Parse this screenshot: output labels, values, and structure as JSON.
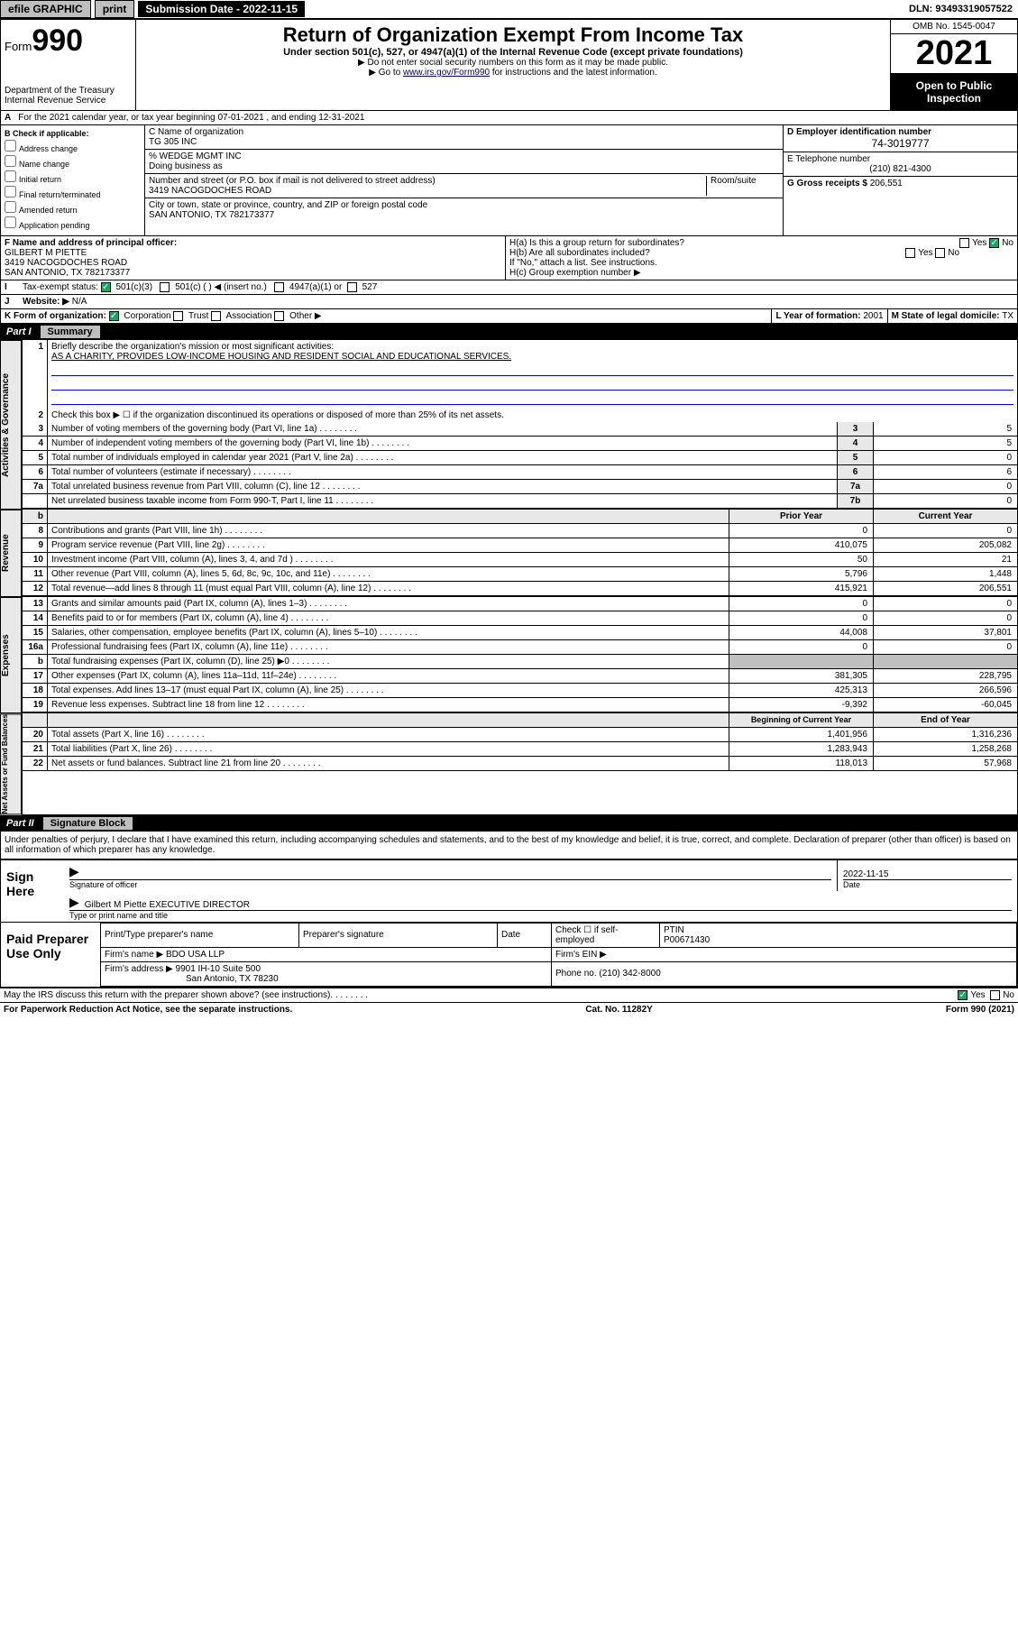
{
  "topbar": {
    "efile": "efile GRAPHIC",
    "print": "print",
    "subdate_label": "Submission Date - 2022-11-15",
    "dln": "DLN: 93493319057522"
  },
  "header": {
    "form_word": "Form",
    "form_num": "990",
    "dept": "Department of the Treasury",
    "irs": "Internal Revenue Service",
    "title": "Return of Organization Exempt From Income Tax",
    "sub": "Under section 501(c), 527, or 4947(a)(1) of the Internal Revenue Code (except private foundations)",
    "nossn": "▶ Do not enter social security numbers on this form as it may be made public.",
    "goto_pre": "▶ Go to ",
    "goto_link": "www.irs.gov/Form990",
    "goto_post": " for instructions and the latest information.",
    "omb": "OMB No. 1545-0047",
    "year": "2021",
    "open": "Open to Public Inspection"
  },
  "A": {
    "line": "For the 2021 calendar year, or tax year beginning 07-01-2021   , and ending 12-31-2021"
  },
  "B": {
    "header": "B Check if applicable:",
    "opts": [
      "Address change",
      "Name change",
      "Initial return",
      "Final return/terminated",
      "Amended return",
      "Application pending"
    ]
  },
  "C": {
    "name_label": "C Name of organization",
    "name": "TG 305 INC",
    "care_label": "% WEDGE MGMT INC",
    "dba_label": "Doing business as",
    "addr_label": "Number and street (or P.O. box if mail is not delivered to street address)",
    "room_label": "Room/suite",
    "addr": "3419 NACOGDOCHES ROAD",
    "city_label": "City or town, state or province, country, and ZIP or foreign postal code",
    "city": "SAN ANTONIO, TX  782173377"
  },
  "D": {
    "label": "D Employer identification number",
    "val": "74-3019777"
  },
  "E": {
    "label": "E Telephone number",
    "val": "(210) 821-4300"
  },
  "G": {
    "label": "G Gross receipts $",
    "val": "206,551"
  },
  "F": {
    "label": "F  Name and address of principal officer:",
    "name": "GILBERT M PIETTE",
    "addr1": "3419 NACOGDOCHES ROAD",
    "addr2": "SAN ANTONIO, TX  782173377"
  },
  "H": {
    "a": "H(a)  Is this a group return for subordinates?",
    "b": "H(b)  Are all subordinates included?",
    "b_note": "If \"No,\" attach a list. See instructions.",
    "c": "H(c)  Group exemption number ▶",
    "yes": "Yes",
    "no": "No"
  },
  "I": {
    "label": "Tax-exempt status:",
    "c3": "501(c)(3)",
    "c": "501(c) (   ) ◀ (insert no.)",
    "a1": "4947(a)(1) or",
    "s527": "527"
  },
  "J": {
    "label": "Website: ▶",
    "val": "N/A"
  },
  "K": {
    "label": "K Form of organization:",
    "corp": "Corporation",
    "trust": "Trust",
    "assoc": "Association",
    "other": "Other ▶"
  },
  "L": {
    "label": "L Year of formation:",
    "val": "2001"
  },
  "M": {
    "label": "M State of legal domicile:",
    "val": "TX"
  },
  "part1": {
    "num": "Part I",
    "title": "Summary",
    "l1_label": "Briefly describe the organization's mission or most significant activities:",
    "l1_text": "AS A CHARITY, PROVIDES LOW-INCOME HOUSING AND RESIDENT SOCIAL AND EDUCATIONAL SERVICES.",
    "l2": "Check this box ▶ ☐  if the organization discontinued its operations or disposed of more than 25% of its net assets.",
    "rows_single": [
      {
        "n": "3",
        "d": "Number of voting members of the governing body (Part VI, line 1a)",
        "box": "3",
        "v": "5"
      },
      {
        "n": "4",
        "d": "Number of independent voting members of the governing body (Part VI, line 1b)",
        "box": "4",
        "v": "5"
      },
      {
        "n": "5",
        "d": "Total number of individuals employed in calendar year 2021 (Part V, line 2a)",
        "box": "5",
        "v": "0"
      },
      {
        "n": "6",
        "d": "Total number of volunteers (estimate if necessary)",
        "box": "6",
        "v": "6"
      },
      {
        "n": "7a",
        "d": "Total unrelated business revenue from Part VIII, column (C), line 12",
        "box": "7a",
        "v": "0"
      },
      {
        "n": "",
        "d": "Net unrelated business taxable income from Form 990-T, Part I, line 11",
        "box": "7b",
        "v": "0"
      }
    ],
    "hdr_prior": "Prior Year",
    "hdr_curr": "Current Year",
    "rows_rev": [
      {
        "n": "8",
        "d": "Contributions and grants (Part VIII, line 1h)",
        "p": "0",
        "c": "0"
      },
      {
        "n": "9",
        "d": "Program service revenue (Part VIII, line 2g)",
        "p": "410,075",
        "c": "205,082"
      },
      {
        "n": "10",
        "d": "Investment income (Part VIII, column (A), lines 3, 4, and 7d )",
        "p": "50",
        "c": "21"
      },
      {
        "n": "11",
        "d": "Other revenue (Part VIII, column (A), lines 5, 6d, 8c, 9c, 10c, and 11e)",
        "p": "5,796",
        "c": "1,448"
      },
      {
        "n": "12",
        "d": "Total revenue—add lines 8 through 11 (must equal Part VIII, column (A), line 12)",
        "p": "415,921",
        "c": "206,551"
      }
    ],
    "rows_exp": [
      {
        "n": "13",
        "d": "Grants and similar amounts paid (Part IX, column (A), lines 1–3)",
        "p": "0",
        "c": "0"
      },
      {
        "n": "14",
        "d": "Benefits paid to or for members (Part IX, column (A), line 4)",
        "p": "0",
        "c": "0"
      },
      {
        "n": "15",
        "d": "Salaries, other compensation, employee benefits (Part IX, column (A), lines 5–10)",
        "p": "44,008",
        "c": "37,801"
      },
      {
        "n": "16a",
        "d": "Professional fundraising fees (Part IX, column (A), line 11e)",
        "p": "0",
        "c": "0"
      },
      {
        "n": "b",
        "d": "Total fundraising expenses (Part IX, column (D), line 25) ▶0",
        "p": "",
        "c": ""
      },
      {
        "n": "17",
        "d": "Other expenses (Part IX, column (A), lines 11a–11d, 11f–24e)",
        "p": "381,305",
        "c": "228,795"
      },
      {
        "n": "18",
        "d": "Total expenses. Add lines 13–17 (must equal Part IX, column (A), line 25)",
        "p": "425,313",
        "c": "266,596"
      },
      {
        "n": "19",
        "d": "Revenue less expenses. Subtract line 18 from line 12",
        "p": "-9,392",
        "c": "-60,045"
      }
    ],
    "hdr_beg": "Beginning of Current Year",
    "hdr_end": "End of Year",
    "rows_na": [
      {
        "n": "20",
        "d": "Total assets (Part X, line 16)",
        "p": "1,401,956",
        "c": "1,316,236"
      },
      {
        "n": "21",
        "d": "Total liabilities (Part X, line 26)",
        "p": "1,283,943",
        "c": "1,258,268"
      },
      {
        "n": "22",
        "d": "Net assets or fund balances. Subtract line 21 from line 20",
        "p": "118,013",
        "c": "57,968"
      }
    ],
    "side_ag": "Activities & Governance",
    "side_rev": "Revenue",
    "side_exp": "Expenses",
    "side_na": "Net Assets or Fund Balances"
  },
  "part2": {
    "num": "Part II",
    "title": "Signature Block",
    "decl": "Under penalties of perjury, I declare that I have examined this return, including accompanying schedules and statements, and to the best of my knowledge and belief, it is true, correct, and complete. Declaration of preparer (other than officer) is based on all information of which preparer has any knowledge.",
    "sign_here": "Sign Here",
    "sig_officer": "Signature of officer",
    "date": "Date",
    "date_val": "2022-11-15",
    "officer_name": "Gilbert M Piette  EXECUTIVE DIRECTOR",
    "type_name": "Type or print name and title",
    "paid": "Paid Preparer Use Only",
    "prep_name_label": "Print/Type preparer's name",
    "prep_sig_label": "Preparer's signature",
    "check_self": "Check ☐ if self-employed",
    "ptin_label": "PTIN",
    "ptin": "P00671430",
    "firm_name_label": "Firm's name    ▶",
    "firm_name": "BDO USA LLP",
    "firm_ein_label": "Firm's EIN ▶",
    "firm_addr_label": "Firm's address ▶",
    "firm_addr1": "9901 IH-10 Suite 500",
    "firm_addr2": "San Antonio, TX  78230",
    "phone_label": "Phone no.",
    "phone": "(210) 342-8000",
    "may_irs": "May the IRS discuss this return with the preparer shown above? (see instructions)",
    "yes": "Yes",
    "no": "No"
  },
  "footer": {
    "pra": "For Paperwork Reduction Act Notice, see the separate instructions.",
    "cat": "Cat. No. 11282Y",
    "form": "Form 990 (2021)"
  }
}
